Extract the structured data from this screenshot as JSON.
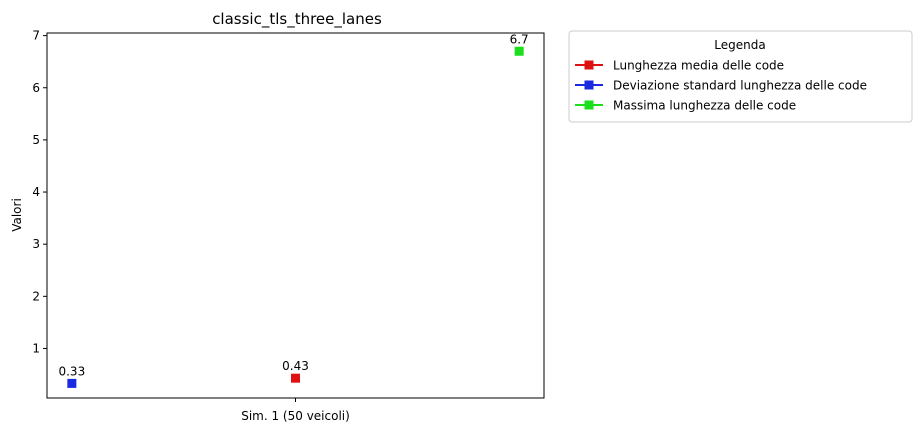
{
  "chart_data": {
    "type": "scatter",
    "title": "classic_tls_three_lanes",
    "xlabel": "",
    "ylabel": "Valori",
    "categories": [
      "Sim. 1 (50 veicoli)"
    ],
    "ylim": [
      0.05,
      7.05
    ],
    "yticks": [
      "1",
      "2",
      "3",
      "4",
      "5",
      "6",
      "7"
    ],
    "grid": false,
    "legend": {
      "title": "Legenda",
      "placement": "outside-top-right"
    },
    "series": [
      {
        "name": "Lunghezza media delle code",
        "color": "#dd1111",
        "values": [
          0.43
        ],
        "labels": [
          "0.43"
        ],
        "offset": 0.0
      },
      {
        "name": "Deviazione standard lunghezza delle code",
        "color": "#1a2ae0",
        "values": [
          0.33
        ],
        "labels": [
          "0.33"
        ],
        "offset": -0.45
      },
      {
        "name": "Massima lunghezza delle code",
        "color": "#1adf1a",
        "values": [
          6.7
        ],
        "labels": [
          "6.7"
        ],
        "offset": 0.45
      }
    ]
  }
}
